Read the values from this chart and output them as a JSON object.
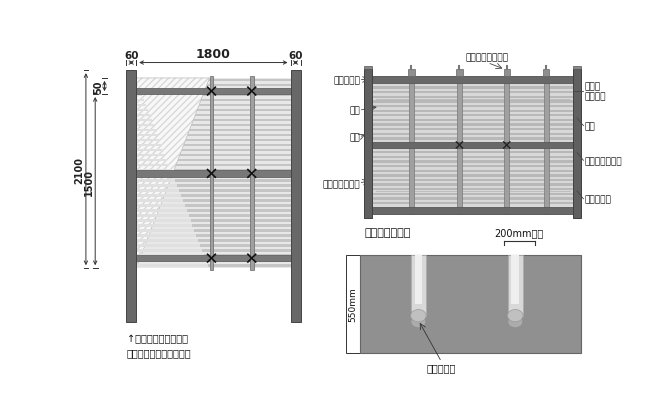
{
  "bg_color": "#ffffff",
  "post_color": "#686868",
  "post_edge": "#444444",
  "rail_color": "#707070",
  "bamboo_bg": "#e0e0e0",
  "bamboo_stripe": "#c0c0c0",
  "tri_color": "#f5f5f5",
  "sup_post_color": "#909090",
  "ground_color": "#888888",
  "text_color": "#111111",
  "dim_color": "#222222",
  "label_left": [
    "チャンネル",
    "銅線",
    "支柱",
    "あや竹（組子）"
  ],
  "label_right": [
    "支柱用\nキャップ",
    "胴縁",
    "あや竹（立子）",
    "ポリコード"
  ],
  "label_top": "人工竹用キャップ",
  "bottom_title": "埋め込み式施工",
  "bottom_200": "200mm以上",
  "bottom_550": "550mm",
  "bottom_label": "下がり止め",
  "note": "↑連結セットはこの柱\n片側がついていません。"
}
